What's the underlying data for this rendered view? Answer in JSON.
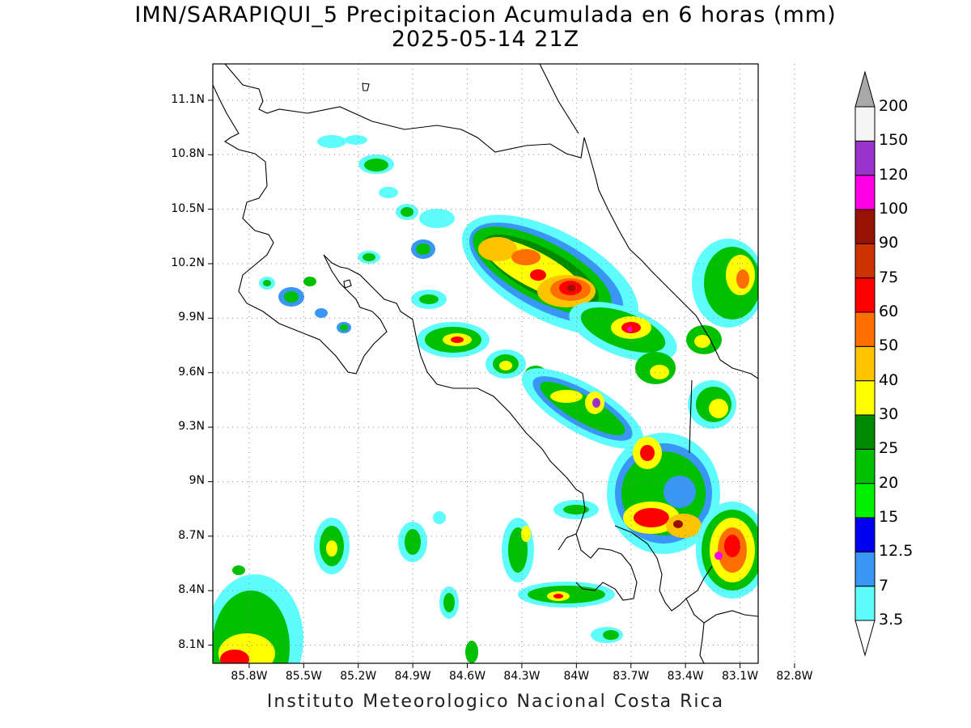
{
  "title": {
    "line1": "IMN/SARAPIQUI_5 Precipitacion Acumulada en 6 horas (mm)",
    "line2": "2025-05-14 21Z"
  },
  "footer": "Instituto Meteorologico Nacional Costa Rica",
  "map": {
    "lon_range": [
      -86.0,
      -83.0
    ],
    "lat_range": [
      8.0,
      11.3
    ],
    "lat_ticks": [
      {
        "value": 11.1,
        "label": "11.1N"
      },
      {
        "value": 10.8,
        "label": "10.8N"
      },
      {
        "value": 10.5,
        "label": "10.5N"
      },
      {
        "value": 10.2,
        "label": "10.2N"
      },
      {
        "value": 9.9,
        "label": "9.9N"
      },
      {
        "value": 9.6,
        "label": "9.6N"
      },
      {
        "value": 9.3,
        "label": "9.3N"
      },
      {
        "value": 9.0,
        "label": "9N"
      },
      {
        "value": 8.7,
        "label": "8.7N"
      },
      {
        "value": 8.4,
        "label": "8.4N"
      },
      {
        "value": 8.1,
        "label": "8.1N"
      }
    ],
    "lon_ticks": [
      {
        "value": -85.8,
        "label": "85.8W"
      },
      {
        "value": -85.5,
        "label": "85.5W"
      },
      {
        "value": -85.2,
        "label": "85.2W"
      },
      {
        "value": -84.9,
        "label": "84.9W"
      },
      {
        "value": -84.6,
        "label": "84.6W"
      },
      {
        "value": -84.3,
        "label": "84.3W"
      },
      {
        "value": -84.0,
        "label": "84W"
      },
      {
        "value": -83.7,
        "label": "83.7W"
      },
      {
        "value": -83.4,
        "label": "83.4W"
      },
      {
        "value": -83.1,
        "label": "83.1W"
      },
      {
        "value": -82.8,
        "label": "82.8W"
      }
    ],
    "grid": "dotted"
  },
  "colorbar": {
    "units": "mm",
    "levels": [
      "3.5",
      "7",
      "12.5",
      "15",
      "20",
      "25",
      "30",
      "40",
      "50",
      "60",
      "75",
      "90",
      "100",
      "120",
      "150",
      "200"
    ],
    "colors": [
      "#ffffff",
      "#5efcfc",
      "#3996f5",
      "#0000f0",
      "#00f000",
      "#00c000",
      "#008a00",
      "#ffff00",
      "#ffc400",
      "#ff6f00",
      "#ff0000",
      "#cc3300",
      "#991100",
      "#ff00e6",
      "#9933cc",
      "#f5f5f5",
      "#a9a9a9"
    ]
  }
}
